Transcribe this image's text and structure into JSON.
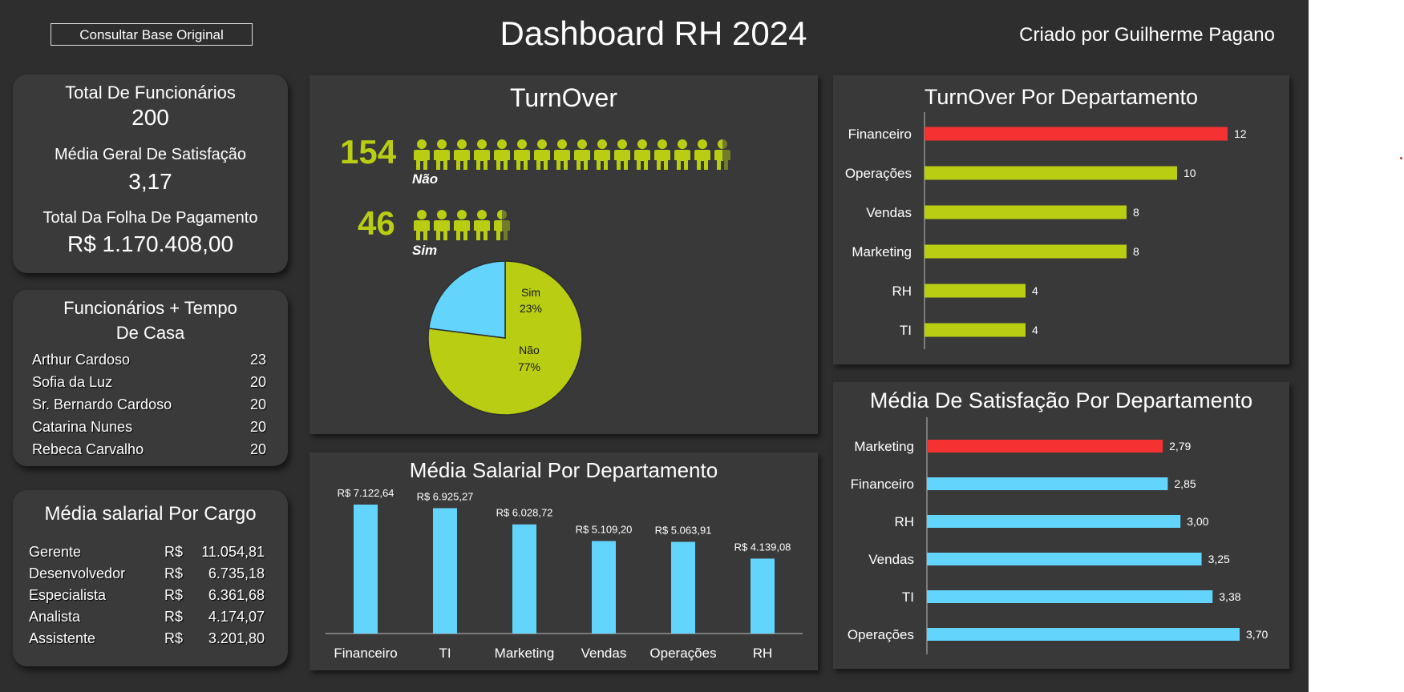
{
  "header": {
    "button_label": "Consultar Base Original",
    "title": "Dashboard RH 2024",
    "author": "Criado por Guilherme Pagano"
  },
  "kpis": {
    "total_funcionarios_label": "Total De Funcionários",
    "total_funcionarios_value": "200",
    "media_satisfacao_label": "Média Geral De Satisfação",
    "media_satisfacao_value": "3,17",
    "folha_label": "Total Da Folha De Pagamento",
    "folha_value": "R$ 1.170.408,00"
  },
  "tenure": {
    "title_line1": "Funcionários + Tempo",
    "title_line2": "De Casa",
    "rows": [
      {
        "name": "Arthur Cardoso",
        "years": "23"
      },
      {
        "name": "Sofia da Luz",
        "years": "20"
      },
      {
        "name": "Sr. Bernardo Cardoso",
        "years": "20"
      },
      {
        "name": "Catarina Nunes",
        "years": "20"
      },
      {
        "name": "Rebeca Carvalho",
        "years": "20"
      }
    ]
  },
  "salary_by_role": {
    "title": "Média salarial Por Cargo",
    "currency": "R$",
    "rows": [
      {
        "role": "Gerente",
        "value": "11.054,81"
      },
      {
        "role": "Desenvolvedor",
        "value": "6.735,18"
      },
      {
        "role": "Especialista",
        "value": "6.361,68"
      },
      {
        "role": "Analista",
        "value": "4.174,07"
      },
      {
        "role": "Assistente",
        "value": "3.201,80"
      }
    ]
  },
  "turnover": {
    "title": "TurnOver",
    "nao_value": "154",
    "nao_label": "Não",
    "sim_value": "46",
    "sim_label": "Sim"
  },
  "colors": {
    "background": "#2e2e2e",
    "panel": "#393939",
    "lime": "#b9cd12",
    "cyan": "#63d4fb",
    "red": "#f53131"
  },
  "chart_data": [
    {
      "type": "pie",
      "title": "",
      "categories": [
        "Não",
        "Sim"
      ],
      "values": [
        77,
        23
      ],
      "labels": [
        "77%",
        "23%"
      ],
      "colors": [
        "#b9cd12",
        "#63d4fb"
      ]
    },
    {
      "type": "bar",
      "orientation": "horizontal",
      "title": "TurnOver Por Departamento",
      "categories": [
        "Financeiro",
        "Operações",
        "Vendas",
        "Marketing",
        "RH",
        "TI"
      ],
      "values": [
        12,
        10,
        8,
        8,
        4,
        4
      ],
      "data_labels": [
        "12",
        "10",
        "8",
        "8",
        "4",
        "4"
      ],
      "xlim": [
        0,
        12
      ],
      "highlight_index": 0
    },
    {
      "type": "bar",
      "orientation": "horizontal",
      "title": "Média De Satisfação Por Departamento",
      "categories": [
        "Marketing",
        "Financeiro",
        "RH",
        "Vendas",
        "TI",
        "Operações"
      ],
      "values": [
        2.79,
        2.85,
        3.0,
        3.25,
        3.38,
        3.7
      ],
      "data_labels": [
        "2,79",
        "2,85",
        "3,00",
        "3,25",
        "3,38",
        "3,70"
      ],
      "xlim": [
        0,
        3.7
      ],
      "highlight_index": 0
    },
    {
      "type": "bar",
      "orientation": "vertical",
      "title": "Média Salarial Por Departamento",
      "categories": [
        "Financeiro",
        "TI",
        "Marketing",
        "Vendas",
        "Operações",
        "RH"
      ],
      "values": [
        7122.64,
        6925.27,
        6028.72,
        5109.2,
        5063.91,
        4139.08
      ],
      "data_labels": [
        "R$ 7.122,64",
        "R$ 6.925,27",
        "R$ 6.028,72",
        "R$ 5.109,20",
        "R$ 5.063,91",
        "R$ 4.139,08"
      ],
      "ylim": [
        0,
        7122.64
      ]
    }
  ]
}
